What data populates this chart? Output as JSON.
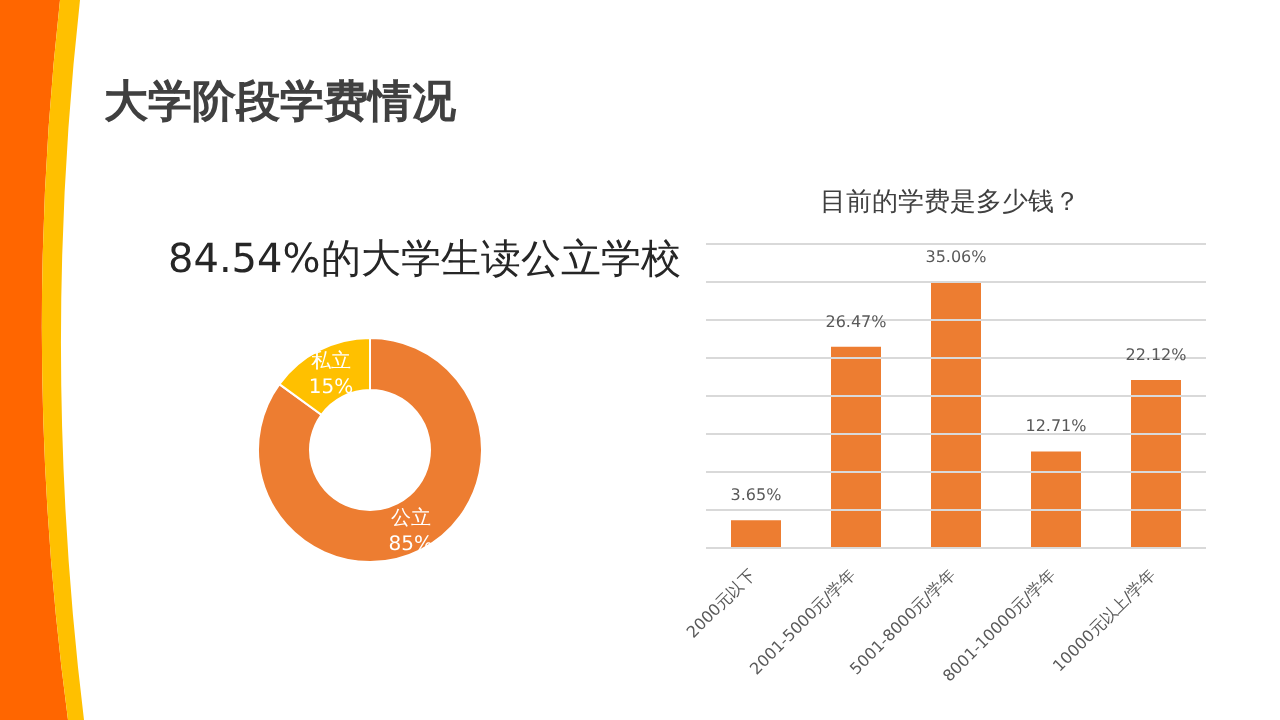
{
  "chart_data": [
    {
      "type": "donut",
      "title": "大学阶段学费情况",
      "subtitle": "84.54%的大学生读公立学校",
      "categories": [
        "公立",
        "私立"
      ],
      "values": [
        85,
        15
      ],
      "colors": [
        "#ed7d31",
        "#ffc000"
      ],
      "value_labels": [
        "85%",
        "15%"
      ],
      "legend": false
    },
    {
      "type": "bar",
      "title": "目前的学费是多少钱？",
      "categories": [
        "2000元以下",
        "2001-5000元/学年",
        "5001-8000元/学年",
        "8001-10000元/学年",
        "10000元以上/学年"
      ],
      "values": [
        3.65,
        26.47,
        35.06,
        12.71,
        22.12
      ],
      "color": "#ed7d31",
      "value_labels": [
        "3.65%",
        "26.47%",
        "35.06%",
        "12.71%",
        "22.12%"
      ],
      "ylim": [
        0,
        40
      ],
      "yticks": [
        {
          "value": 0,
          "label": null
        },
        {
          "value": 5,
          "label": null
        },
        {
          "value": 10,
          "label": null
        },
        {
          "value": 15,
          "label": null
        },
        {
          "value": 20,
          "label": null
        },
        {
          "value": 25,
          "label": null
        },
        {
          "value": 30,
          "label": null
        },
        {
          "value": 35,
          "label": null
        },
        {
          "value": 40,
          "label": null
        }
      ],
      "grid": "y",
      "tick_labels": "x",
      "legend": false
    }
  ]
}
